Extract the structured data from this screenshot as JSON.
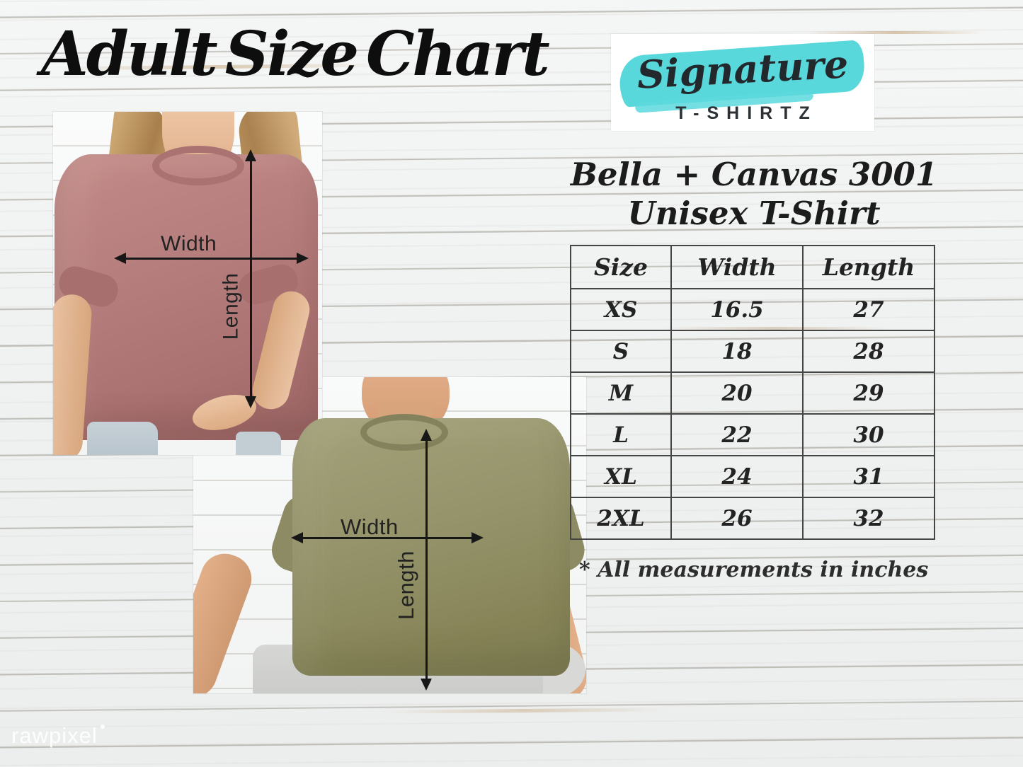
{
  "title": "Adult Size Chart",
  "logo": {
    "script": "Signature",
    "subtext": "T-SHIRTZ",
    "accent_color": "#59d8dc"
  },
  "product": {
    "name_line1": "Bella + Canvas 3001",
    "name_line2": "Unisex T-Shirt"
  },
  "labels": {
    "width": "Width",
    "length": "Length"
  },
  "note": "* All measurements in inches",
  "watermark": "rawpixel",
  "chart_data": {
    "type": "table",
    "title": "Bella + Canvas 3001 Unisex T-Shirt — Adult Size Chart",
    "columns": [
      "Size",
      "Width",
      "Length"
    ],
    "rows": [
      [
        "XS",
        "16.5",
        "27"
      ],
      [
        "S",
        "18",
        "28"
      ],
      [
        "M",
        "20",
        "29"
      ],
      [
        "L",
        "22",
        "30"
      ],
      [
        "XL",
        "24",
        "31"
      ],
      [
        "2XL",
        "26",
        "32"
      ]
    ],
    "units": "inches",
    "grid": true,
    "note": "* All measurements in inches"
  }
}
